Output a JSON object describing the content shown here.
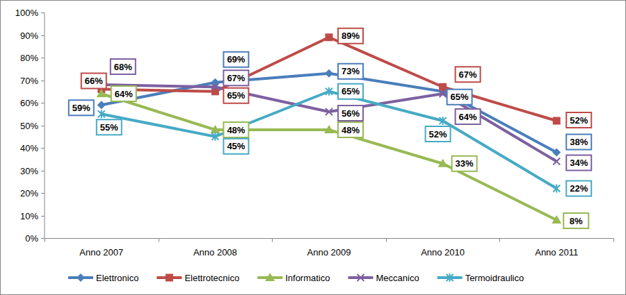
{
  "chart_data": {
    "type": "line",
    "categories": [
      "Anno 2007",
      "Anno 2008",
      "Anno 2009",
      "Anno 2010",
      "Anno 2011"
    ],
    "ylim": [
      0,
      100
    ],
    "yticks": [
      {
        "value": 0,
        "label": "0%"
      },
      {
        "value": 10,
        "label": "10%"
      },
      {
        "value": 20,
        "label": "20%"
      },
      {
        "value": 30,
        "label": "30%"
      },
      {
        "value": 40,
        "label": "40%"
      },
      {
        "value": 50,
        "label": "50%"
      },
      {
        "value": 60,
        "label": "60%"
      },
      {
        "value": 70,
        "label": "70%"
      },
      {
        "value": 80,
        "label": "80%"
      },
      {
        "value": 90,
        "label": "90%"
      },
      {
        "value": 100,
        "label": "100%"
      }
    ],
    "grid": false,
    "legend": "bottom",
    "data_labels": true,
    "series": [
      {
        "name": "Elettronico",
        "color": "#4a7ebb",
        "marker": "diamond",
        "values": [
          59,
          69,
          73,
          65,
          38
        ],
        "value_labels": [
          "59%",
          "69%",
          "73%",
          "65%",
          "38%"
        ]
      },
      {
        "name": "Elettrotecnico",
        "color": "#be4b48",
        "marker": "square",
        "values": [
          66,
          65,
          89,
          67,
          52
        ],
        "value_labels": [
          "66%",
          "65%",
          "89%",
          "67%",
          "52%"
        ]
      },
      {
        "name": "Informatico",
        "color": "#98b954",
        "marker": "triangle",
        "values": [
          64,
          48,
          48,
          33,
          8
        ],
        "value_labels": [
          "64%",
          "48%",
          "48%",
          "33%",
          "8%"
        ]
      },
      {
        "name": "Meccanico",
        "color": "#7d60a0",
        "marker": "x",
        "values": [
          68,
          67,
          56,
          64,
          34
        ],
        "value_labels": [
          "68%",
          "67%",
          "56%",
          "64%",
          "34%"
        ]
      },
      {
        "name": "Termoidraulico",
        "color": "#46aac5",
        "marker": "star",
        "values": [
          55,
          45,
          65,
          52,
          22
        ],
        "value_labels": [
          "55%",
          "45%",
          "65%",
          "52%",
          "22%"
        ]
      }
    ]
  }
}
